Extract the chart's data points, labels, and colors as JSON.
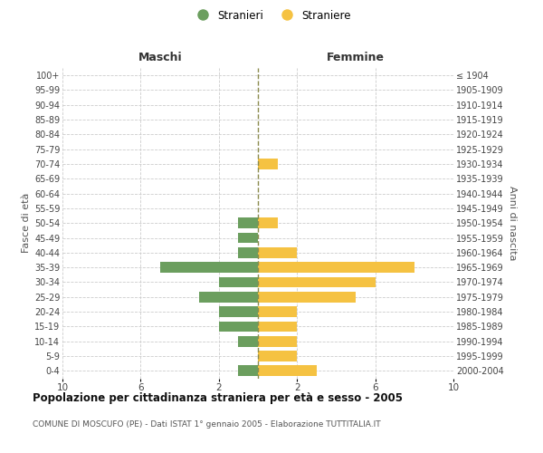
{
  "age_groups": [
    "0-4",
    "5-9",
    "10-14",
    "15-19",
    "20-24",
    "25-29",
    "30-34",
    "35-39",
    "40-44",
    "45-49",
    "50-54",
    "55-59",
    "60-64",
    "65-69",
    "70-74",
    "75-79",
    "80-84",
    "85-89",
    "90-94",
    "95-99",
    "100+"
  ],
  "birth_years": [
    "2000-2004",
    "1995-1999",
    "1990-1994",
    "1985-1989",
    "1980-1984",
    "1975-1979",
    "1970-1974",
    "1965-1969",
    "1960-1964",
    "1955-1959",
    "1950-1954",
    "1945-1949",
    "1940-1944",
    "1935-1939",
    "1930-1934",
    "1925-1929",
    "1920-1924",
    "1915-1919",
    "1910-1914",
    "1905-1909",
    "≤ 1904"
  ],
  "males": [
    1,
    0,
    1,
    2,
    2,
    3,
    2,
    5,
    1,
    1,
    1,
    0,
    0,
    0,
    0,
    0,
    0,
    0,
    0,
    0,
    0
  ],
  "females": [
    3,
    2,
    2,
    2,
    2,
    5,
    6,
    8,
    2,
    0,
    1,
    0,
    0,
    0,
    1,
    0,
    0,
    0,
    0,
    0,
    0
  ],
  "male_color": "#6b9e5e",
  "female_color": "#f5c242",
  "dashed_line_color": "#8b8b4e",
  "grid_color": "#cccccc",
  "bg_color": "#ffffff",
  "xlim": 10,
  "title": "Popolazione per cittadinanza straniera per età e sesso - 2005",
  "subtitle": "COMUNE DI MOSCUFO (PE) - Dati ISTAT 1° gennaio 2005 - Elaborazione TUTTITALIA.IT",
  "xlabel_left": "Maschi",
  "xlabel_right": "Femmine",
  "ylabel_left": "Fasce di età",
  "ylabel_right": "Anni di nascita",
  "legend_male": "Stranieri",
  "legend_female": "Straniere"
}
